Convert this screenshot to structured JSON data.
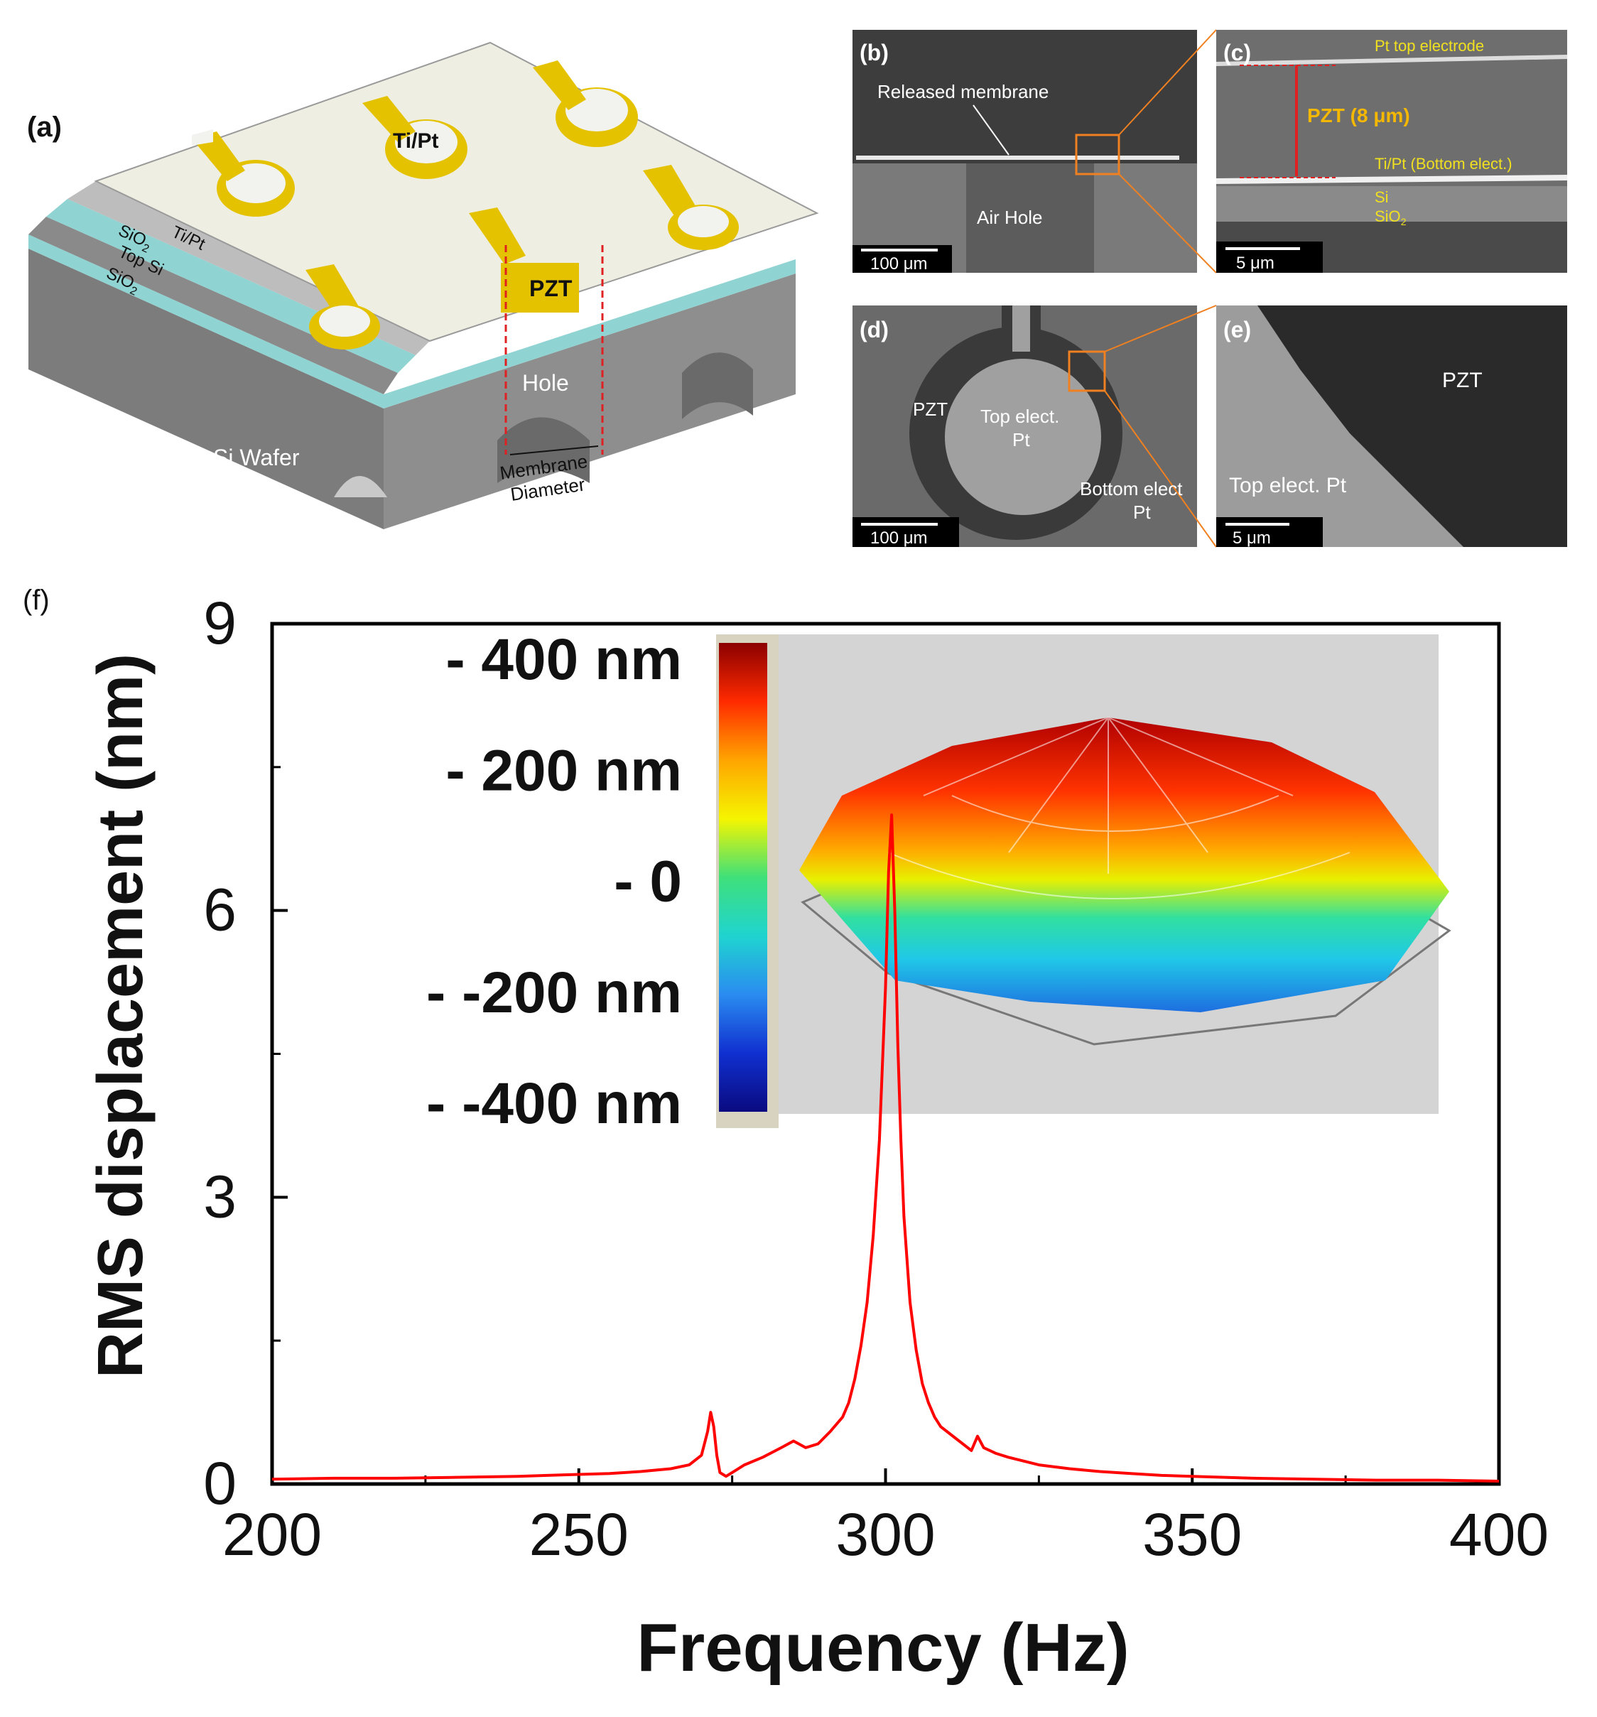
{
  "panels": {
    "a": {
      "tag": "(a)",
      "labels": {
        "ti_pt_top": "Ti/Pt",
        "ti_pt_layer": "Ti/Pt",
        "sio2_upper": "SiO",
        "top_si": "Top Si",
        "sio2_lower": "SiO",
        "sub2": "2",
        "pzt": "PZT",
        "hole": "Hole",
        "si_wafer": "Si Wafer",
        "membrane": "Membrane",
        "diameter": "Diameter"
      }
    },
    "b": {
      "tag": "(b)",
      "released": "Released membrane",
      "air_hole": "Air Hole",
      "scale": "100 μm"
    },
    "c": {
      "tag": "(c)",
      "pt_top": "Pt top electrode",
      "pzt_thick": "PZT (8 μm)",
      "ti_pt_bottom": "Ti/Pt (Bottom elect.)",
      "si": "Si",
      "sio2": "SiO",
      "sub2": "2",
      "scale": "5 μm"
    },
    "d": {
      "tag": "(d)",
      "pzt": "PZT",
      "top_elect": "Top elect.",
      "top_pt": "Pt",
      "bottom_elect": "Bottom elect",
      "bottom_pt": "Pt",
      "scale": "100 μm"
    },
    "e": {
      "tag": "(e)",
      "pzt": "PZT",
      "top_elect": "Top elect. Pt",
      "scale": "5 μm"
    },
    "f": {
      "tag": "(f)"
    }
  },
  "colorbar": {
    "labels": [
      "- 400 nm",
      "- 200 nm",
      "-  0",
      "- -200 nm",
      "- -400 nm"
    ],
    "stops": [
      "#8b0000",
      "#ff2a00",
      "#ffa500",
      "#f5f500",
      "#3fe07a",
      "#1fd4d0",
      "#2a8cf0",
      "#1030d0",
      "#0a0a80"
    ]
  },
  "chart_data": {
    "type": "line",
    "title": "",
    "xlabel": "Frequency (Hz)",
    "ylabel": "RMS displacement (nm)",
    "xlim": [
      200,
      400
    ],
    "ylim": [
      0,
      9
    ],
    "x_ticks": [
      200,
      250,
      300,
      350,
      400
    ],
    "y_ticks": [
      0,
      3,
      6,
      9
    ],
    "series": [
      {
        "name": "RMS displacement",
        "color": "#ff0000",
        "x": [
          200,
          210,
          220,
          230,
          240,
          250,
          255,
          260,
          265,
          268,
          270,
          271,
          271.5,
          272,
          272.5,
          273,
          274,
          275,
          277,
          280,
          283,
          285,
          287,
          289,
          291,
          293,
          294,
          295,
          296,
          297,
          298,
          299,
          300,
          300.5,
          301,
          301.5,
          302,
          302.5,
          303,
          304,
          305,
          306,
          307,
          308,
          309,
          310,
          312,
          314,
          315,
          316,
          318,
          320,
          325,
          330,
          335,
          340,
          345,
          350,
          360,
          370,
          380,
          390,
          400
        ],
        "y": [
          0.05,
          0.06,
          0.06,
          0.07,
          0.08,
          0.1,
          0.11,
          0.13,
          0.16,
          0.2,
          0.3,
          0.55,
          0.75,
          0.6,
          0.3,
          0.12,
          0.08,
          0.12,
          0.2,
          0.28,
          0.38,
          0.45,
          0.38,
          0.42,
          0.55,
          0.7,
          0.85,
          1.1,
          1.45,
          1.9,
          2.6,
          3.6,
          5.2,
          6.4,
          7.0,
          6.0,
          4.6,
          3.6,
          2.8,
          1.9,
          1.4,
          1.05,
          0.85,
          0.7,
          0.6,
          0.55,
          0.45,
          0.35,
          0.5,
          0.38,
          0.32,
          0.28,
          0.2,
          0.16,
          0.13,
          0.11,
          0.09,
          0.08,
          0.06,
          0.05,
          0.04,
          0.04,
          0.03
        ]
      }
    ]
  }
}
